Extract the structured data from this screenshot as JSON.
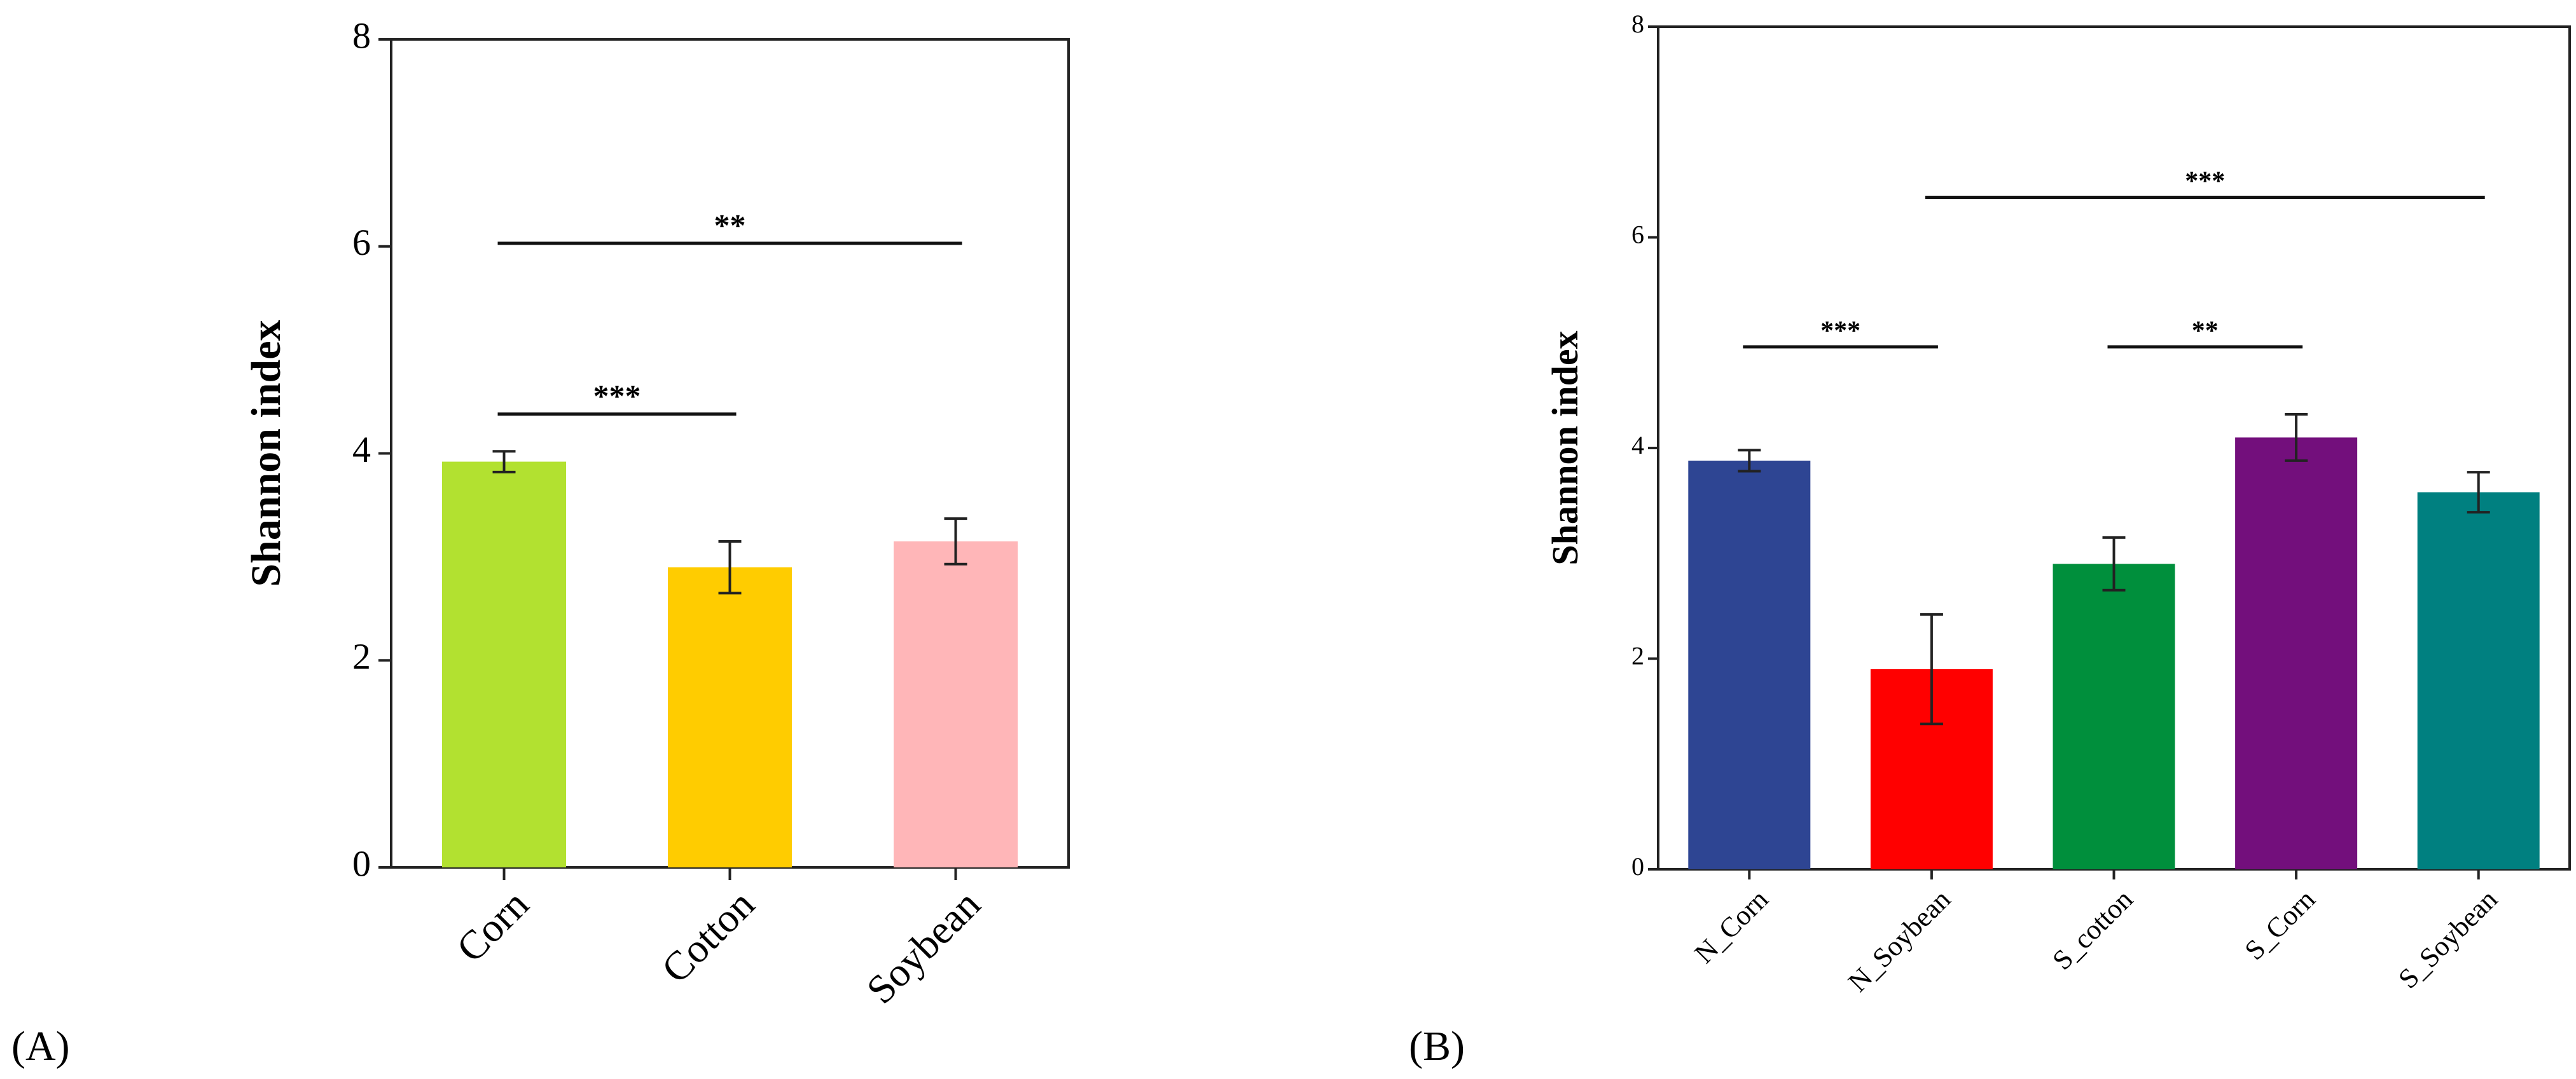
{
  "chart_data": [
    {
      "panel": "A",
      "panel_label": "(A)",
      "type": "bar",
      "ylabel": "Shannon index",
      "ylim": [
        0,
        8
      ],
      "yticks": [
        0,
        2,
        4,
        6,
        8
      ],
      "categories": [
        "Corn",
        "Cotton",
        "Soybean"
      ],
      "values": [
        3.92,
        2.9,
        3.15
      ],
      "errors": [
        0.1,
        0.25,
        0.22
      ],
      "colors": [
        "#b2e130",
        "#ffcc00",
        "#ffb6b8"
      ],
      "significance": [
        {
          "from": 0,
          "to": 1,
          "y": 4.38,
          "label": "***"
        },
        {
          "from": 0,
          "to": 2,
          "y": 6.03,
          "label": "**"
        }
      ]
    },
    {
      "panel": "B",
      "panel_label": "(B)",
      "type": "bar",
      "ylabel": "Shannon index",
      "ylim": [
        0,
        8
      ],
      "yticks": [
        0,
        2,
        4,
        6,
        8
      ],
      "categories": [
        "N_Corn",
        "N_Soybean",
        "S_cotton",
        "S_Corn",
        "S_Soybean"
      ],
      "values": [
        3.88,
        1.9,
        2.9,
        4.1,
        3.58
      ],
      "errors": [
        0.1,
        0.52,
        0.25,
        0.22,
        0.19
      ],
      "colors": [
        "#2e4593",
        "#ff0000",
        "#008f3c",
        "#730f7c",
        "#008080"
      ],
      "significance": [
        {
          "from": 0,
          "to": 1,
          "y": 4.96,
          "label": "***"
        },
        {
          "from": 2,
          "to": 3,
          "y": 4.96,
          "label": "**"
        },
        {
          "from": 1,
          "to": 4,
          "y": 6.38,
          "label": "***"
        }
      ]
    }
  ]
}
